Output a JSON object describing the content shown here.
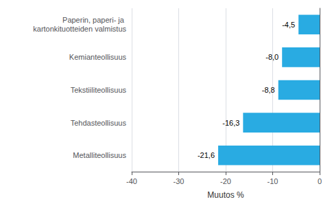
{
  "chart_data": {
    "type": "bar",
    "orientation": "horizontal",
    "categories": [
      "Metalliteollisuus",
      "Tehdasteollisuus",
      "Tekstiiliteollisuus",
      "Kemianteollisuus",
      "Paperin, paperi- ja kartonkituotteiden valmistus"
    ],
    "values": [
      -21.6,
      -16.3,
      -8.8,
      -8.0,
      -4.5
    ],
    "value_labels": [
      "-21,6",
      "-16,3",
      "-8,8",
      "-8,0",
      "-4,5"
    ],
    "data_labels": true,
    "color": "#29abe2",
    "xlabel": "Muutos %",
    "xlim": [
      -40,
      0
    ],
    "xticks": [
      -40,
      -30,
      -20,
      -10,
      0
    ],
    "grid": true
  }
}
